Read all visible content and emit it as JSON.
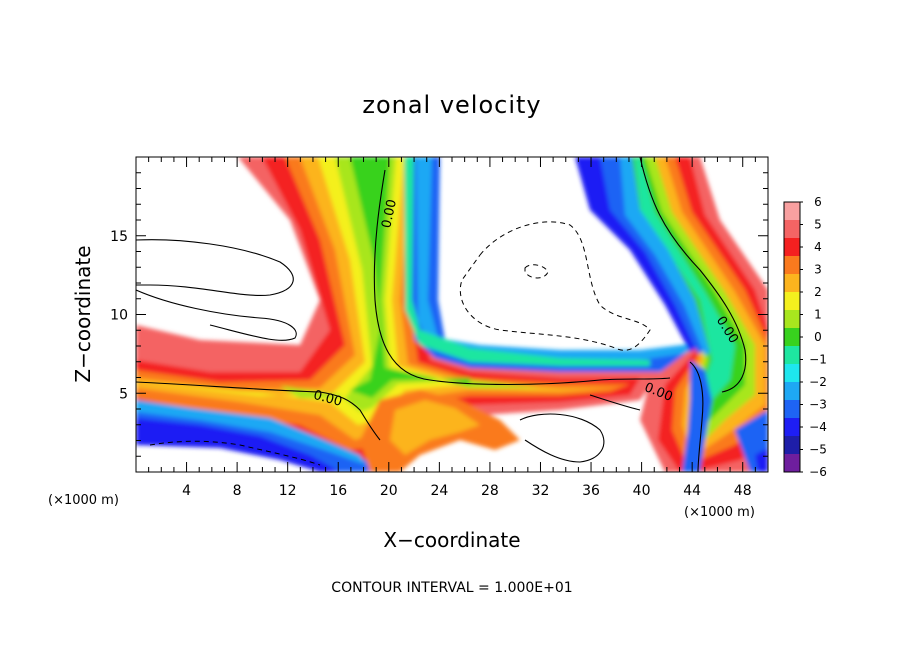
{
  "chart_data": {
    "type": "heatmap",
    "title": "zonal velocity",
    "xlabel": "X−coordinate",
    "ylabel": "Z−coordinate",
    "x_unit": "(×1000 m)",
    "x_unit_right": "(×1000 m)",
    "xlim": [
      0,
      50
    ],
    "ylim": [
      0,
      20
    ],
    "x_ticks": [
      4,
      8,
      12,
      16,
      20,
      24,
      28,
      32,
      36,
      40,
      44,
      48
    ],
    "y_ticks": [
      5,
      10,
      15
    ],
    "colorbar": {
      "min": -6,
      "max": 6,
      "tick_labels": [
        "6",
        "5",
        "4",
        "3",
        "2",
        "1",
        "0",
        "−1",
        "−2",
        "−3",
        "−4",
        "−5",
        "−6"
      ],
      "colors": [
        "#f8a0a0",
        "#f46464",
        "#f42020",
        "#fa7a1e",
        "#fcb41e",
        "#f4f01e",
        "#a8e61e",
        "#38d21e",
        "#1ee6a0",
        "#1ee6ee",
        "#1ea8f4",
        "#1e64f4",
        "#1e1ef4",
        "#1e1ea8",
        "#6e1e9e"
      ]
    },
    "contour_labels": [
      "0.00",
      "0.00",
      "0.00",
      "0.00"
    ],
    "footer": "CONTOUR INTERVAL = 1.000E+01"
  }
}
